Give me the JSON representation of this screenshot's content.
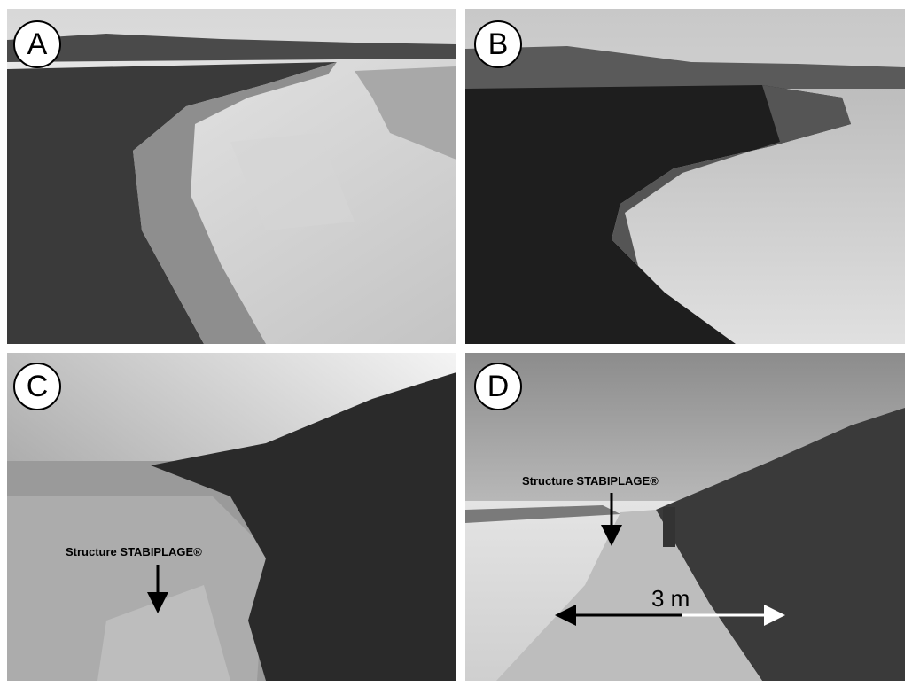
{
  "panels": [
    {
      "label": "A"
    },
    {
      "label": "B"
    },
    {
      "label": "C",
      "annotation": "Structure STABIPLAGE®"
    },
    {
      "label": "D",
      "annotation": "Structure STABIPLAGE®",
      "scale": "3 m"
    }
  ]
}
